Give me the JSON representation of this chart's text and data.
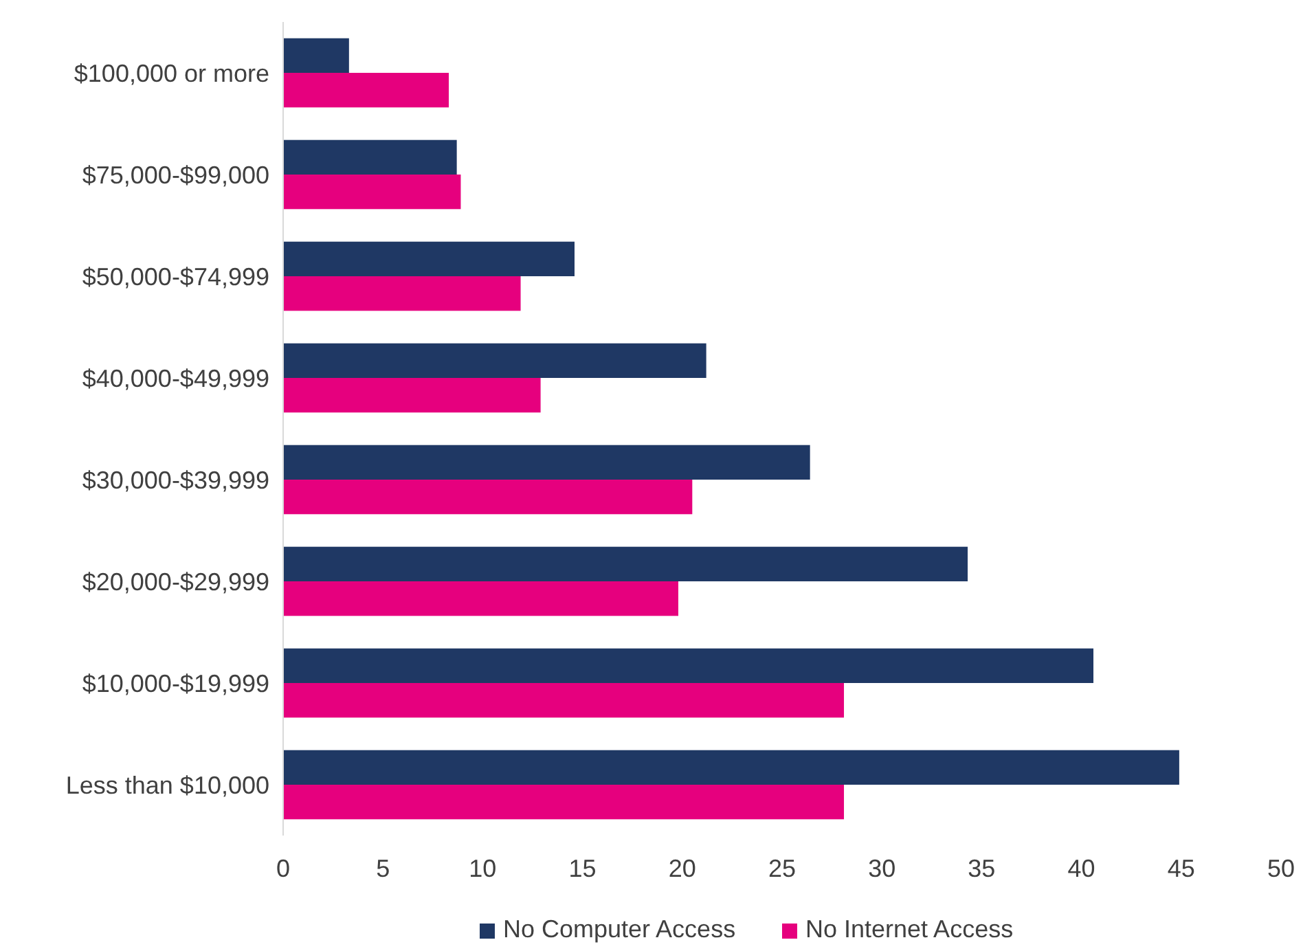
{
  "chart_data": {
    "type": "bar",
    "orientation": "horizontal",
    "categories": [
      "$100,000 or more",
      "$75,000-$99,000",
      "$50,000-$74,999",
      "$40,000-$49,999",
      "$30,000-$39,999",
      "$20,000-$29,999",
      "$10,000-$19,999",
      "Less than $10,000"
    ],
    "series": [
      {
        "name": "No Computer Access",
        "color": "#1f3864",
        "values": [
          3.3,
          8.7,
          14.6,
          21.2,
          26.4,
          34.3,
          40.6,
          44.9
        ]
      },
      {
        "name": "No Internet Access",
        "color": "#e6007e",
        "values": [
          8.3,
          8.9,
          11.9,
          12.9,
          20.5,
          19.8,
          28.1,
          28.1
        ]
      }
    ],
    "xlim": [
      0,
      50
    ],
    "xticks": [
      0,
      5,
      10,
      15,
      20,
      25,
      30,
      35,
      40,
      45,
      50
    ],
    "grid": false,
    "legend": "bottom"
  }
}
